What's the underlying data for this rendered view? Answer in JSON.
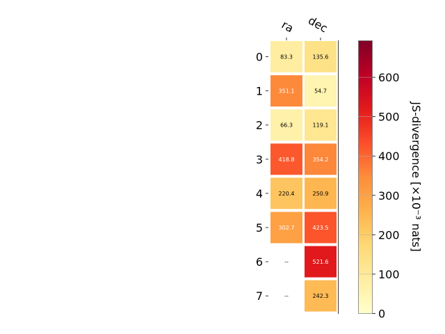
{
  "chart_data": {
    "type": "heatmap",
    "columns": [
      "ra",
      "dec"
    ],
    "rows": [
      "0",
      "1",
      "2",
      "3",
      "4",
      "5",
      "6",
      "7"
    ],
    "values": [
      [
        83.3,
        135.6
      ],
      [
        351.1,
        54.7
      ],
      [
        66.3,
        119.1
      ],
      [
        418.8,
        354.2
      ],
      [
        220.4,
        250.9
      ],
      [
        302.7,
        423.5
      ],
      [
        null,
        521.6
      ],
      [
        null,
        242.3
      ]
    ],
    "value_labels": [
      [
        "83.3",
        "135.6"
      ],
      [
        "351.1",
        "54.7"
      ],
      [
        "66.3",
        "119.1"
      ],
      [
        "418.8",
        "354.2"
      ],
      [
        "220.4",
        "250.9"
      ],
      [
        "302.7",
        "423.5"
      ],
      [
        "--",
        "521.6"
      ],
      [
        "--",
        "242.3"
      ]
    ],
    "colorbar": {
      "label": "JS-divergence [×10⁻³ nats]",
      "ticks": [
        "0",
        "100",
        "200",
        "300",
        "400",
        "500",
        "600"
      ],
      "range": [
        0,
        693
      ],
      "colormap": "YlOrRd"
    },
    "grid": false
  }
}
